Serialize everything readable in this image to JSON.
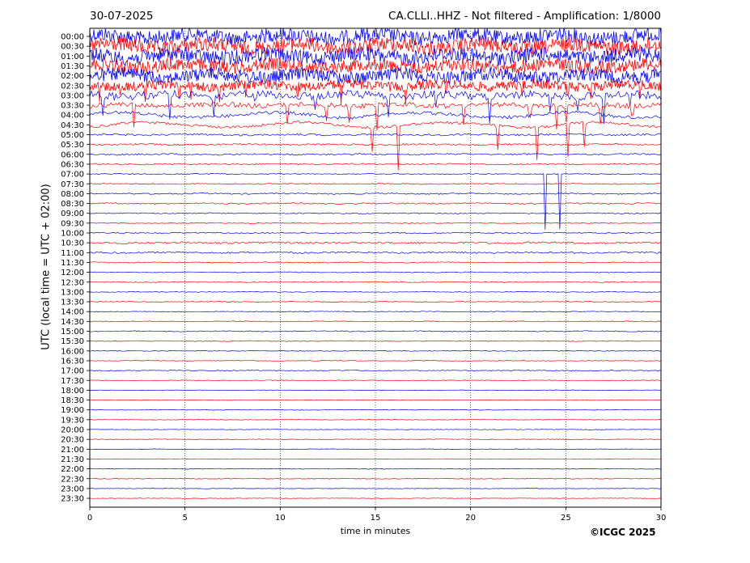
{
  "header": {
    "date": "30-07-2025",
    "station_title": "CA.CLLI..HHZ - Not filtered - Amplification: 1/8000"
  },
  "footer": {
    "copyright": "©ICGC 2025"
  },
  "colors": {
    "trace_a": "#0000ff",
    "trace_b": "#ff0000",
    "grid": "#000000"
  },
  "chart_data": {
    "type": "line",
    "title": "CA.CLLI..HHZ - Not filtered - Amplification: 1/8000",
    "xlabel": "time in minutes",
    "ylabel": "UTC (local time = UTC + 02:00)",
    "xlim": [
      0,
      30
    ],
    "x_ticks": [
      "0",
      "5",
      "10",
      "15",
      "20",
      "25",
      "30"
    ],
    "y_ticks": [
      "00:00",
      "00:30",
      "01:00",
      "01:30",
      "02:00",
      "02:30",
      "03:00",
      "03:30",
      "04:00",
      "04:30",
      "05:00",
      "05:30",
      "06:00",
      "06:30",
      "07:00",
      "07:30",
      "08:00",
      "08:30",
      "09:00",
      "09:30",
      "10:00",
      "10:30",
      "11:00",
      "11:30",
      "12:00",
      "12:30",
      "13:00",
      "13:30",
      "14:00",
      "14:30",
      "15:00",
      "15:30",
      "16:00",
      "16:30",
      "17:00",
      "17:30",
      "18:00",
      "18:30",
      "19:00",
      "19:30",
      "20:00",
      "20:30",
      "21:00",
      "21:30",
      "22:00",
      "22:30",
      "23:00",
      "23:30"
    ],
    "grid": "dotted vertical lines every 5 minutes",
    "trace_colors": "alternating blue and red per 30-minute row",
    "noise_level": [
      9,
      9,
      9,
      8,
      8,
      6,
      5,
      3,
      2,
      1.5,
      1.2,
      1,
      1,
      0.8,
      0.6,
      0.6,
      0.8,
      0.8,
      0.6,
      0.5,
      0.6,
      1.2,
      1.0,
      0.6,
      0.5,
      0.5,
      0.4,
      0.5,
      0.4,
      0.5,
      0.6,
      0.5,
      0.4,
      0.4,
      0.5,
      0.4,
      0.3,
      0.3,
      0.3,
      0.3,
      0.3,
      0.4,
      0.3,
      0.3,
      0.4,
      0.4,
      0.3,
      0.3
    ],
    "spikes": [
      {
        "row": 5,
        "minutes": [
          0.5,
          1.6,
          2.9,
          4.7,
          5.3,
          6.8,
          8.2,
          10.9,
          13.2,
          16.6,
          18.7,
          22.7,
          25.1,
          26.3,
          28.9
        ],
        "amplitude": 20
      },
      {
        "row": 6,
        "minutes": [
          0.7,
          4.2,
          6.5,
          8.7,
          11.8,
          15.7,
          18.2,
          21.0,
          24.2,
          25.6,
          27.0,
          28.4
        ],
        "amplitude": 35
      },
      {
        "row": 7,
        "minutes": [
          2.3,
          10.4,
          12.4,
          13.6,
          15.1,
          19.6,
          23.1,
          24.5,
          25.0,
          26.8,
          28.5
        ],
        "amplitude": 40
      },
      {
        "row": 9,
        "minutes": [
          14.8,
          16.2,
          21.4,
          23.5,
          25.1,
          26.0
        ],
        "amplitude": 55
      },
      {
        "row": 14,
        "minutes": [
          23.9,
          24.7
        ],
        "amplitude": 90
      }
    ]
  }
}
